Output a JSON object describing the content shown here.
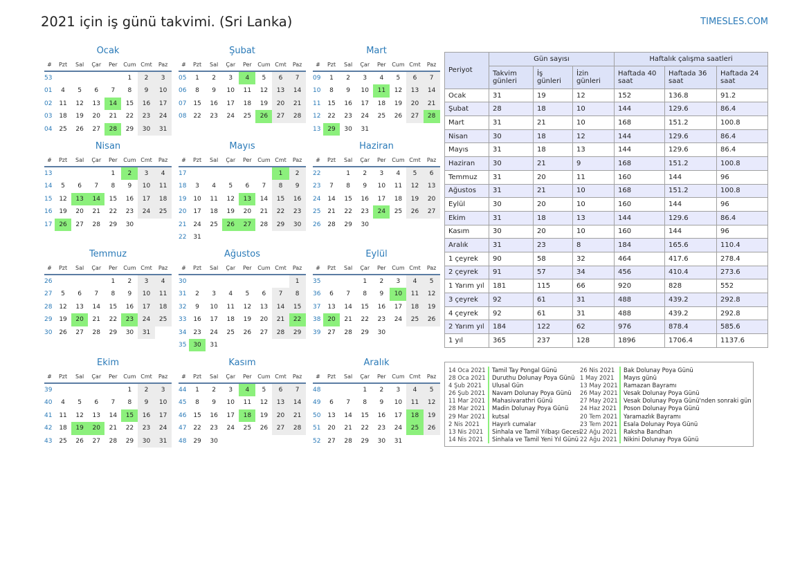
{
  "title": "2021 için iş günü takvimi. (Sri Lanka)",
  "site": "TIMESLES.COM",
  "weekday_header": [
    "#",
    "Pzt",
    "Sal",
    "Çar",
    "Per",
    "Cum",
    "Cmt",
    "Paz"
  ],
  "months": [
    {
      "name": "Ocak",
      "rows": [
        [
          "53",
          "",
          "",
          "",
          "",
          1,
          2,
          3
        ],
        [
          "01",
          4,
          5,
          6,
          7,
          8,
          9,
          10
        ],
        [
          "02",
          11,
          12,
          13,
          14,
          15,
          16,
          17
        ],
        [
          "03",
          18,
          19,
          20,
          21,
          22,
          23,
          24
        ],
        [
          "04",
          25,
          26,
          27,
          28,
          29,
          30,
          31
        ]
      ],
      "holidays": [
        14,
        28
      ]
    },
    {
      "name": "Şubat",
      "rows": [
        [
          "05",
          1,
          2,
          3,
          4,
          5,
          6,
          7
        ],
        [
          "06",
          8,
          9,
          10,
          11,
          12,
          13,
          14
        ],
        [
          "07",
          15,
          16,
          17,
          18,
          19,
          20,
          21
        ],
        [
          "08",
          22,
          23,
          24,
          25,
          26,
          27,
          28
        ]
      ],
      "holidays": [
        4,
        26
      ]
    },
    {
      "name": "Mart",
      "rows": [
        [
          "09",
          1,
          2,
          3,
          4,
          5,
          6,
          7
        ],
        [
          "10",
          8,
          9,
          10,
          11,
          12,
          13,
          14
        ],
        [
          "11",
          15,
          16,
          17,
          18,
          19,
          20,
          21
        ],
        [
          "12",
          22,
          23,
          24,
          25,
          26,
          27,
          28
        ],
        [
          "13",
          29,
          30,
          31,
          "",
          "",
          "",
          ""
        ]
      ],
      "holidays": [
        11,
        28,
        29
      ]
    },
    {
      "name": "Nisan",
      "rows": [
        [
          "13",
          "",
          "",
          "",
          1,
          2,
          3,
          4
        ],
        [
          "14",
          5,
          6,
          7,
          8,
          9,
          10,
          11
        ],
        [
          "15",
          12,
          13,
          14,
          15,
          16,
          17,
          18
        ],
        [
          "16",
          19,
          20,
          21,
          22,
          23,
          24,
          25
        ],
        [
          "17",
          26,
          27,
          28,
          29,
          30,
          "",
          ""
        ]
      ],
      "holidays": [
        2,
        13,
        14,
        26
      ]
    },
    {
      "name": "Mayıs",
      "rows": [
        [
          "17",
          "",
          "",
          "",
          "",
          "",
          1,
          2
        ],
        [
          "18",
          3,
          4,
          5,
          6,
          7,
          8,
          9
        ],
        [
          "19",
          10,
          11,
          12,
          13,
          14,
          15,
          16
        ],
        [
          "20",
          17,
          18,
          19,
          20,
          21,
          22,
          23
        ],
        [
          "21",
          24,
          25,
          26,
          27,
          28,
          29,
          30
        ],
        [
          "22",
          31,
          "",
          "",
          "",
          "",
          "",
          ""
        ]
      ],
      "holidays": [
        1,
        13,
        26,
        27
      ]
    },
    {
      "name": "Haziran",
      "rows": [
        [
          "22",
          "",
          1,
          2,
          3,
          4,
          5,
          6
        ],
        [
          "23",
          7,
          8,
          9,
          10,
          11,
          12,
          13
        ],
        [
          "24",
          14,
          15,
          16,
          17,
          18,
          19,
          20
        ],
        [
          "25",
          21,
          22,
          23,
          24,
          25,
          26,
          27
        ],
        [
          "26",
          28,
          29,
          30,
          "",
          "",
          "",
          ""
        ]
      ],
      "holidays": [
        24
      ]
    },
    {
      "name": "Temmuz",
      "rows": [
        [
          "26",
          "",
          "",
          "",
          1,
          2,
          3,
          4
        ],
        [
          "27",
          5,
          6,
          7,
          8,
          9,
          10,
          11
        ],
        [
          "28",
          12,
          13,
          14,
          15,
          16,
          17,
          18
        ],
        [
          "29",
          19,
          20,
          21,
          22,
          23,
          24,
          25
        ],
        [
          "30",
          26,
          27,
          28,
          29,
          30,
          31,
          ""
        ]
      ],
      "holidays": [
        20,
        23
      ]
    },
    {
      "name": "Ağustos",
      "rows": [
        [
          "30",
          "",
          "",
          "",
          "",
          "",
          "",
          1
        ],
        [
          "31",
          2,
          3,
          4,
          5,
          6,
          7,
          8
        ],
        [
          "32",
          9,
          10,
          11,
          12,
          13,
          14,
          15
        ],
        [
          "33",
          16,
          17,
          18,
          19,
          20,
          21,
          22
        ],
        [
          "34",
          23,
          24,
          25,
          26,
          27,
          28,
          29
        ],
        [
          "35",
          30,
          31,
          "",
          "",
          "",
          "",
          ""
        ]
      ],
      "holidays": [
        22,
        30
      ]
    },
    {
      "name": "Eylül",
      "rows": [
        [
          "35",
          "",
          "",
          1,
          2,
          3,
          4,
          5
        ],
        [
          "36",
          6,
          7,
          8,
          9,
          10,
          11,
          12
        ],
        [
          "37",
          13,
          14,
          15,
          16,
          17,
          18,
          19
        ],
        [
          "38",
          20,
          21,
          22,
          23,
          24,
          25,
          26
        ],
        [
          "39",
          27,
          28,
          29,
          30,
          "",
          "",
          ""
        ]
      ],
      "holidays": [
        10,
        20
      ]
    },
    {
      "name": "Ekim",
      "rows": [
        [
          "39",
          "",
          "",
          "",
          "",
          1,
          2,
          3
        ],
        [
          "40",
          4,
          5,
          6,
          7,
          8,
          9,
          10
        ],
        [
          "41",
          11,
          12,
          13,
          14,
          15,
          16,
          17
        ],
        [
          "42",
          18,
          19,
          20,
          21,
          22,
          23,
          24
        ],
        [
          "43",
          25,
          26,
          27,
          28,
          29,
          30,
          31
        ]
      ],
      "holidays": [
        15,
        19,
        20
      ]
    },
    {
      "name": "Kasım",
      "rows": [
        [
          "44",
          1,
          2,
          3,
          4,
          5,
          6,
          7
        ],
        [
          "45",
          8,
          9,
          10,
          11,
          12,
          13,
          14
        ],
        [
          "46",
          15,
          16,
          17,
          18,
          19,
          20,
          21
        ],
        [
          "47",
          22,
          23,
          24,
          25,
          26,
          27,
          28
        ],
        [
          "48",
          29,
          30,
          "",
          "",
          "",
          "",
          ""
        ]
      ],
      "holidays": [
        4,
        18
      ]
    },
    {
      "name": "Aralık",
      "rows": [
        [
          "48",
          "",
          "",
          1,
          2,
          3,
          4,
          5
        ],
        [
          "49",
          6,
          7,
          8,
          9,
          10,
          11,
          12
        ],
        [
          "50",
          13,
          14,
          15,
          16,
          17,
          18,
          19
        ],
        [
          "51",
          20,
          21,
          22,
          23,
          24,
          25,
          26
        ],
        [
          "52",
          27,
          28,
          29,
          30,
          31,
          "",
          ""
        ]
      ],
      "holidays": [
        18,
        25
      ]
    }
  ],
  "stats": {
    "period_header": "Periyot",
    "days_group": "Gün sayısı",
    "hours_group": "Haftalık çalışma saatleri",
    "columns": [
      "Takvim günleri",
      "İş günleri",
      "İzin günleri",
      "Haftada 40 saat",
      "Haftada 36 saat",
      "Haftada 24 saat"
    ],
    "rows": [
      [
        "Ocak",
        "31",
        "19",
        "12",
        "152",
        "136.8",
        "91.2"
      ],
      [
        "Şubat",
        "28",
        "18",
        "10",
        "144",
        "129.6",
        "86.4"
      ],
      [
        "Mart",
        "31",
        "21",
        "10",
        "168",
        "151.2",
        "100.8"
      ],
      [
        "Nisan",
        "30",
        "18",
        "12",
        "144",
        "129.6",
        "86.4"
      ],
      [
        "Mayıs",
        "31",
        "18",
        "13",
        "144",
        "129.6",
        "86.4"
      ],
      [
        "Haziran",
        "30",
        "21",
        "9",
        "168",
        "151.2",
        "100.8"
      ],
      [
        "Temmuz",
        "31",
        "20",
        "11",
        "160",
        "144",
        "96"
      ],
      [
        "Ağustos",
        "31",
        "21",
        "10",
        "168",
        "151.2",
        "100.8"
      ],
      [
        "Eylül",
        "30",
        "20",
        "10",
        "160",
        "144",
        "96"
      ],
      [
        "Ekim",
        "31",
        "18",
        "13",
        "144",
        "129.6",
        "86.4"
      ],
      [
        "Kasım",
        "30",
        "20",
        "10",
        "160",
        "144",
        "96"
      ],
      [
        "Aralık",
        "31",
        "23",
        "8",
        "184",
        "165.6",
        "110.4"
      ],
      [
        "1 çeyrek",
        "90",
        "58",
        "32",
        "464",
        "417.6",
        "278.4"
      ],
      [
        "2 çeyrek",
        "91",
        "57",
        "34",
        "456",
        "410.4",
        "273.6"
      ],
      [
        "1 Yarım yıl",
        "181",
        "115",
        "66",
        "920",
        "828",
        "552"
      ],
      [
        "3 çeyrek",
        "92",
        "61",
        "31",
        "488",
        "439.2",
        "292.8"
      ],
      [
        "4 çeyrek",
        "92",
        "61",
        "31",
        "488",
        "439.2",
        "292.8"
      ],
      [
        "2 Yarım yıl",
        "184",
        "122",
        "62",
        "976",
        "878.4",
        "585.6"
      ],
      [
        "1 yıl",
        "365",
        "237",
        "128",
        "1896",
        "1706.4",
        "1137.6"
      ]
    ]
  },
  "holidays_list": [
    [
      {
        "date": "14 Oca 2021",
        "name": "Tamil Tay Pongal Günü"
      },
      {
        "date": "28 Oca 2021",
        "name": "Duruthu Dolunay Poya Günü"
      },
      {
        "date": "4 Şub 2021",
        "name": "Ulusal Gün"
      },
      {
        "date": "26 Şub 2021",
        "name": "Navam Dolunay Poya Günü"
      },
      {
        "date": "11 Mar 2021",
        "name": "Mahasivarathri Günü"
      },
      {
        "date": "28 Mar 2021",
        "name": "Madin Dolunay Poya Günü"
      },
      {
        "date": "29 Mar 2021",
        "name": "kutsal"
      },
      {
        "date": "2 Nis 2021",
        "name": "Hayırlı cumalar"
      },
      {
        "date": "13 Nis 2021",
        "name": "Sinhala ve Tamil Yılbaşı Gecesi"
      },
      {
        "date": "14 Nis 2021",
        "name": "Sinhala ve Tamil Yeni Yıl Günü"
      }
    ],
    [
      {
        "date": "26 Nis 2021",
        "name": "Bak Dolunay Poya Günü"
      },
      {
        "date": "1 May 2021",
        "name": "Mayıs günü"
      },
      {
        "date": "13 May 2021",
        "name": "Ramazan Bayramı"
      },
      {
        "date": "26 May 2021",
        "name": "Vesak Dolunay Poya Günü"
      },
      {
        "date": "27 May 2021",
        "name": "Vesak Dolunay Poya Günü'nden sonraki gün"
      },
      {
        "date": "24 Haz 2021",
        "name": "Poson Dolunay Poya Günü"
      },
      {
        "date": "20 Tem 2021",
        "name": "Yaramazlık Bayramı"
      },
      {
        "date": "23 Tem 2021",
        "name": "Esala Dolunay Poya Günü"
      },
      {
        "date": "22 Ağu 2021",
        "name": "Raksha Bandhan"
      },
      {
        "date": "22 Ağu 2021",
        "name": "Nikini Dolunay Poya Günü"
      }
    ]
  ]
}
